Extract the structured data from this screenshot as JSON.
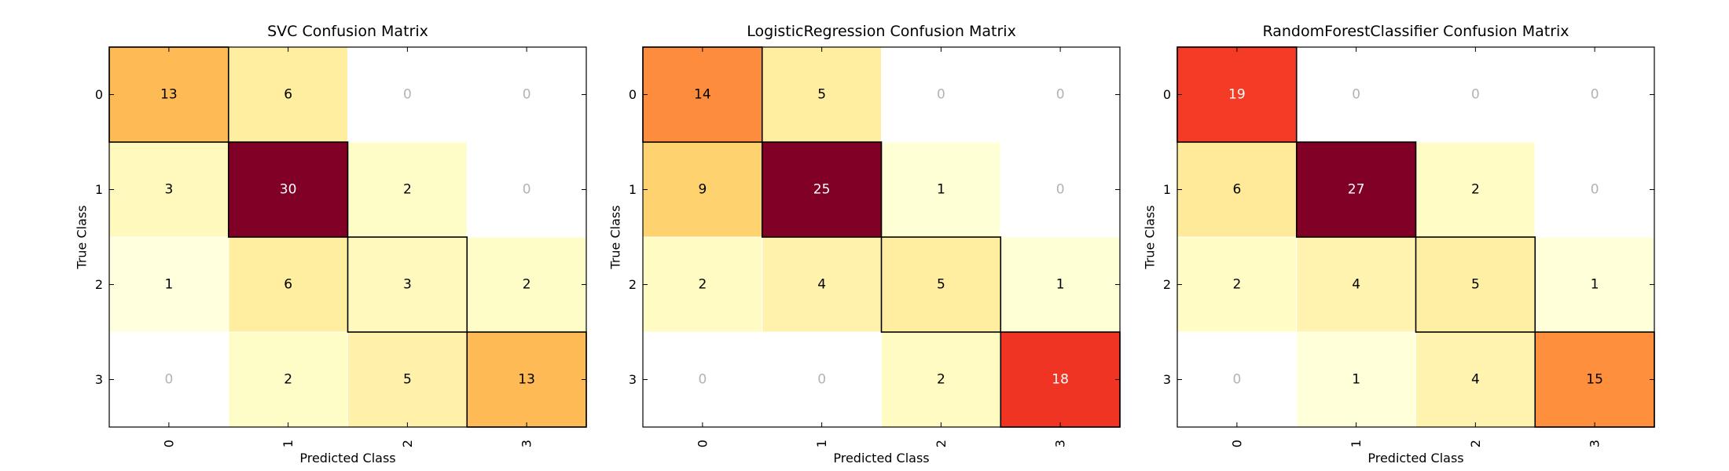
{
  "chart_data": [
    {
      "type": "heatmap",
      "title": "SVC Confusion Matrix",
      "xlabel": "Predicted Class",
      "ylabel": "True Class",
      "x_categories": [
        "0",
        "1",
        "2",
        "3"
      ],
      "y_categories": [
        "0",
        "1",
        "2",
        "3"
      ],
      "matrix": [
        [
          13,
          6,
          0,
          0
        ],
        [
          3,
          30,
          2,
          0
        ],
        [
          1,
          6,
          3,
          2
        ],
        [
          0,
          2,
          5,
          13
        ]
      ],
      "colormap": "YlOrRd",
      "diagonal_outline": true
    },
    {
      "type": "heatmap",
      "title": "LogisticRegression Confusion Matrix",
      "xlabel": "Predicted Class",
      "ylabel": "True Class",
      "x_categories": [
        "0",
        "1",
        "2",
        "3"
      ],
      "y_categories": [
        "0",
        "1",
        "2",
        "3"
      ],
      "matrix": [
        [
          14,
          5,
          0,
          0
        ],
        [
          9,
          25,
          1,
          0
        ],
        [
          2,
          4,
          5,
          1
        ],
        [
          0,
          0,
          2,
          18
        ]
      ],
      "colormap": "YlOrRd",
      "diagonal_outline": true
    },
    {
      "type": "heatmap",
      "title": "RandomForestClassifier Confusion Matrix",
      "xlabel": "Predicted Class",
      "ylabel": "True Class",
      "x_categories": [
        "0",
        "1",
        "2",
        "3"
      ],
      "y_categories": [
        "0",
        "1",
        "2",
        "3"
      ],
      "matrix": [
        [
          19,
          0,
          0,
          0
        ],
        [
          6,
          27,
          2,
          0
        ],
        [
          2,
          4,
          5,
          1
        ],
        [
          0,
          1,
          4,
          15
        ]
      ],
      "colormap": "YlOrRd",
      "diagonal_outline": true
    }
  ]
}
